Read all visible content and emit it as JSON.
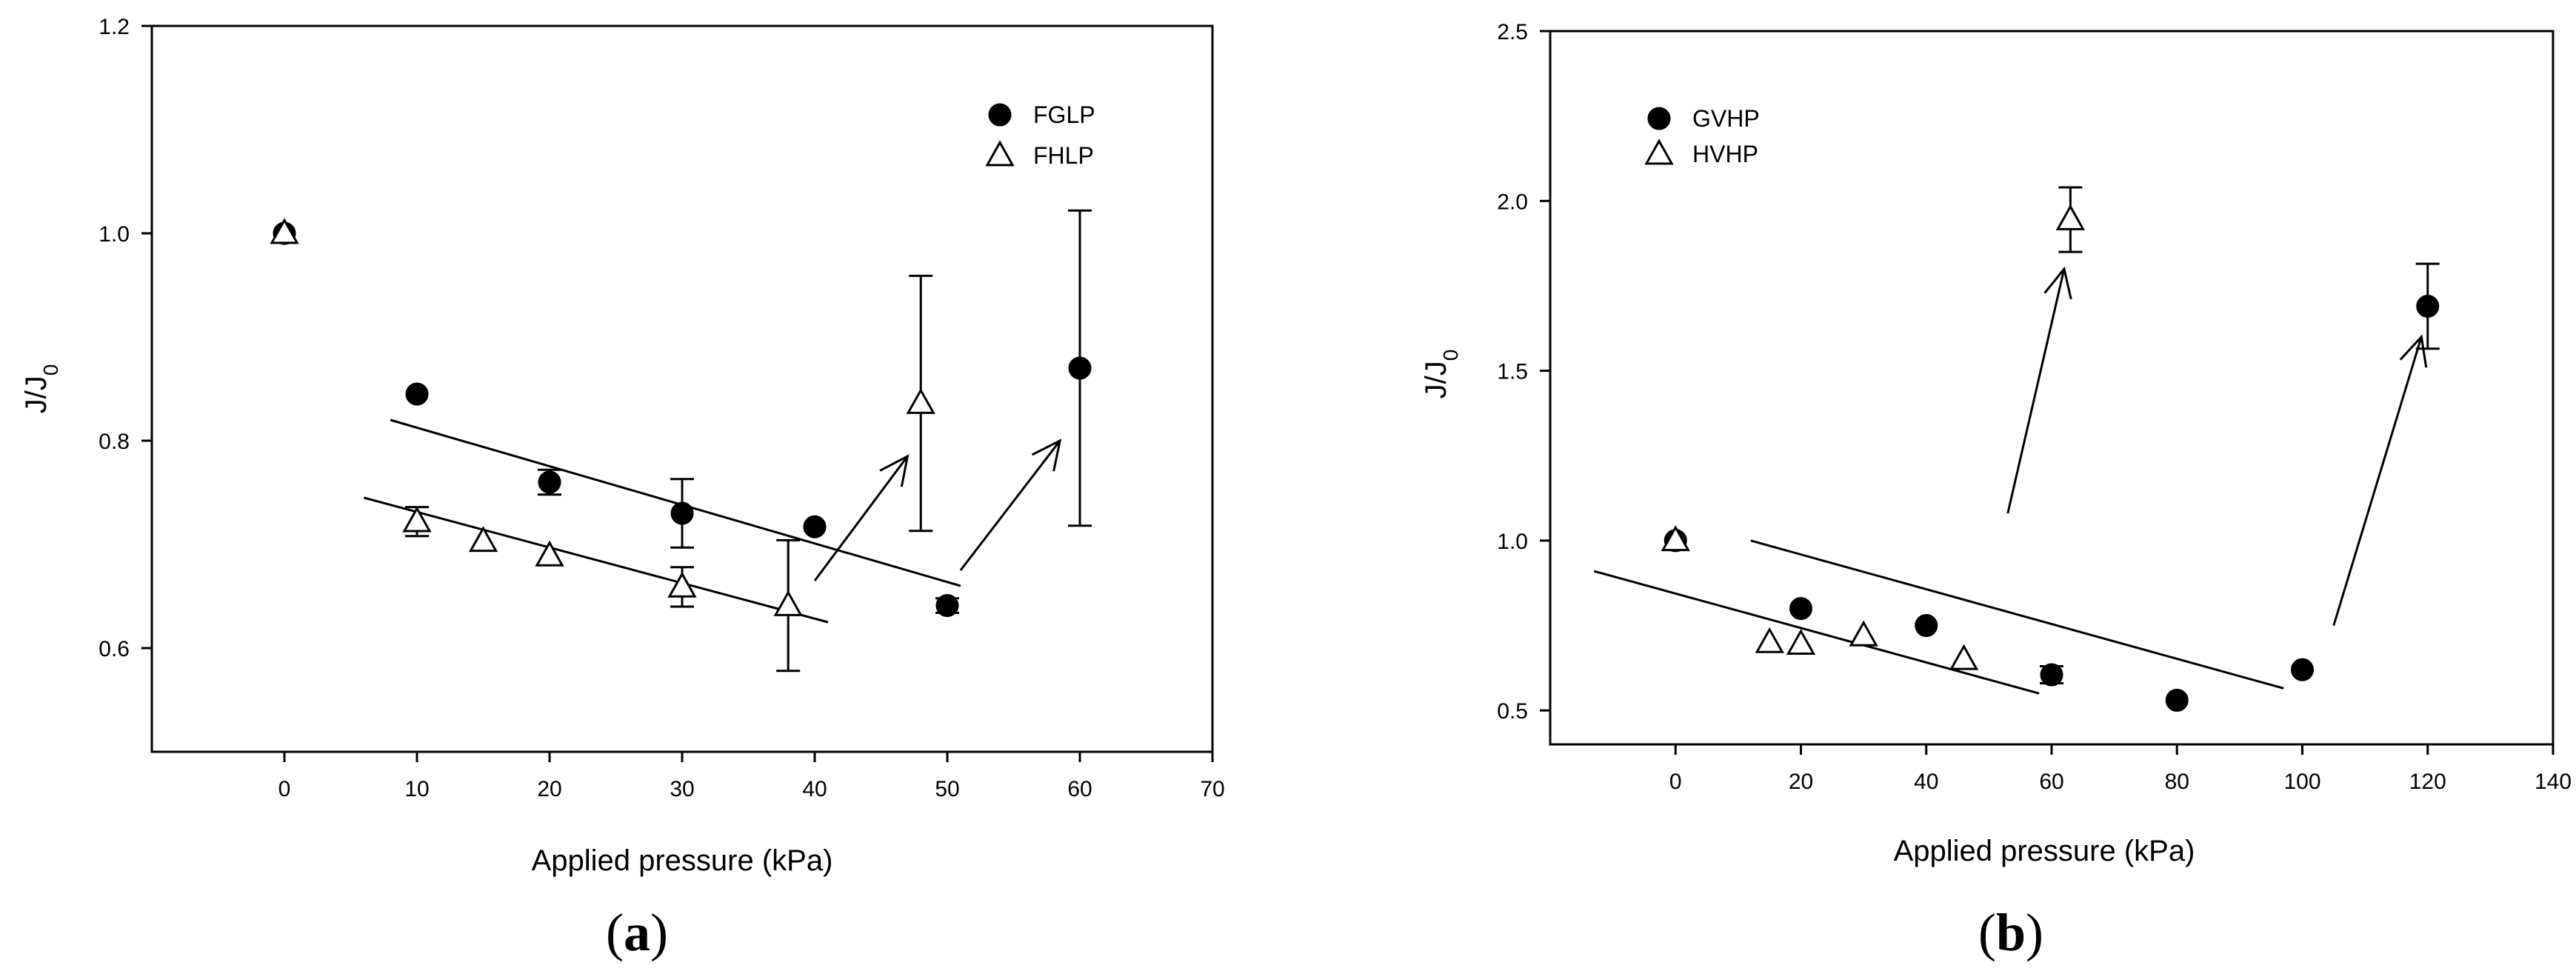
{
  "chart_data": [
    {
      "panel": "(a)",
      "type": "scatter",
      "xlabel": "Applied pressure (kPa)",
      "ylabel": "J/J",
      "ylabel_sub": "0",
      "xlim": [
        -10,
        70
      ],
      "ylim": [
        0.5,
        1.2
      ],
      "xticks": [
        0,
        10,
        20,
        30,
        40,
        50,
        60,
        70
      ],
      "yticks": [
        0.6,
        0.8,
        1.0,
        1.2
      ],
      "xtick_labels": [
        "0",
        "10",
        "20",
        "30",
        "40",
        "50",
        "60",
        "70"
      ],
      "ytick_labels": [
        "0.6",
        "0.8",
        "1.0",
        "1.2"
      ],
      "legend_position": "top-right",
      "series": [
        {
          "name": "FGLP",
          "marker": "filled-circle",
          "points": [
            {
              "x": 0,
              "y": 1.0,
              "err": 0
            },
            {
              "x": 10,
              "y": 0.845,
              "err": 0
            },
            {
              "x": 20,
              "y": 0.76,
              "err": 0.012
            },
            {
              "x": 30,
              "y": 0.73,
              "err": 0.033
            },
            {
              "x": 40,
              "y": 0.717,
              "err": 0
            },
            {
              "x": 50,
              "y": 0.641,
              "err": 0.007
            },
            {
              "x": 60,
              "y": 0.87,
              "err": 0.152
            }
          ]
        },
        {
          "name": "FHLP",
          "marker": "open-triangle",
          "points": [
            {
              "x": 0,
              "y": 1.0,
              "err": 0
            },
            {
              "x": 10,
              "y": 0.722,
              "err": 0.014
            },
            {
              "x": 15,
              "y": 0.703,
              "err": 0
            },
            {
              "x": 20,
              "y": 0.689,
              "err": 0
            },
            {
              "x": 30,
              "y": 0.659,
              "err": 0.019
            },
            {
              "x": 38,
              "y": 0.641,
              "err": 0.063
            },
            {
              "x": 48,
              "y": 0.836,
              "err": 0.123
            }
          ]
        }
      ],
      "trend_lines": [
        {
          "x1": 8,
          "y1": 0.82,
          "x2": 51,
          "y2": 0.66
        },
        {
          "x1": 6,
          "y1": 0.745,
          "x2": 41,
          "y2": 0.625
        }
      ],
      "arrows": [
        {
          "x1": 40,
          "y1": 0.665,
          "x2": 47,
          "y2": 0.785
        },
        {
          "x1": 51,
          "y1": 0.675,
          "x2": 58.5,
          "y2": 0.8
        }
      ]
    },
    {
      "panel": "(b)",
      "type": "scatter",
      "xlabel": "Applied pressure (kPa)",
      "ylabel": "J/J",
      "ylabel_sub": "0",
      "xlim": [
        -20,
        140
      ],
      "ylim": [
        0.4,
        2.5
      ],
      "xticks": [
        0,
        20,
        40,
        60,
        80,
        100,
        120,
        140
      ],
      "yticks": [
        0.5,
        1.0,
        1.5,
        2.0,
        2.5
      ],
      "xtick_labels": [
        "0",
        "20",
        "40",
        "60",
        "80",
        "100",
        "120",
        "140"
      ],
      "ytick_labels": [
        "0.5",
        "1.0",
        "1.5",
        "2.0",
        "2.5"
      ],
      "legend_position": "top-left",
      "series": [
        {
          "name": "GVHP",
          "marker": "filled-circle",
          "points": [
            {
              "x": 0,
              "y": 1.0,
              "err": 0
            },
            {
              "x": 20,
              "y": 0.8,
              "err": 0
            },
            {
              "x": 40,
              "y": 0.75,
              "err": 0
            },
            {
              "x": 60,
              "y": 0.605,
              "err": 0.025
            },
            {
              "x": 80,
              "y": 0.53,
              "err": 0
            },
            {
              "x": 100,
              "y": 0.62,
              "err": 0
            },
            {
              "x": 120,
              "y": 1.69,
              "err": 0.125
            }
          ]
        },
        {
          "name": "HVHP",
          "marker": "open-triangle",
          "points": [
            {
              "x": 0,
              "y": 1.0,
              "err": 0
            },
            {
              "x": 15,
              "y": 0.7,
              "err": 0
            },
            {
              "x": 20,
              "y": 0.695,
              "err": 0
            },
            {
              "x": 30,
              "y": 0.72,
              "err": 0
            },
            {
              "x": 46,
              "y": 0.65,
              "err": 0
            },
            {
              "x": 63,
              "y": 1.945,
              "err": 0.095
            }
          ]
        }
      ],
      "trend_lines": [
        {
          "x1": -13,
          "y1": 0.91,
          "x2": 58,
          "y2": 0.55
        },
        {
          "x1": 12,
          "y1": 1.0,
          "x2": 97,
          "y2": 0.565
        }
      ],
      "arrows": [
        {
          "x1": 53,
          "y1": 1.08,
          "x2": 62,
          "y2": 1.8
        },
        {
          "x1": 105,
          "y1": 0.75,
          "x2": 119,
          "y2": 1.6
        }
      ]
    }
  ]
}
